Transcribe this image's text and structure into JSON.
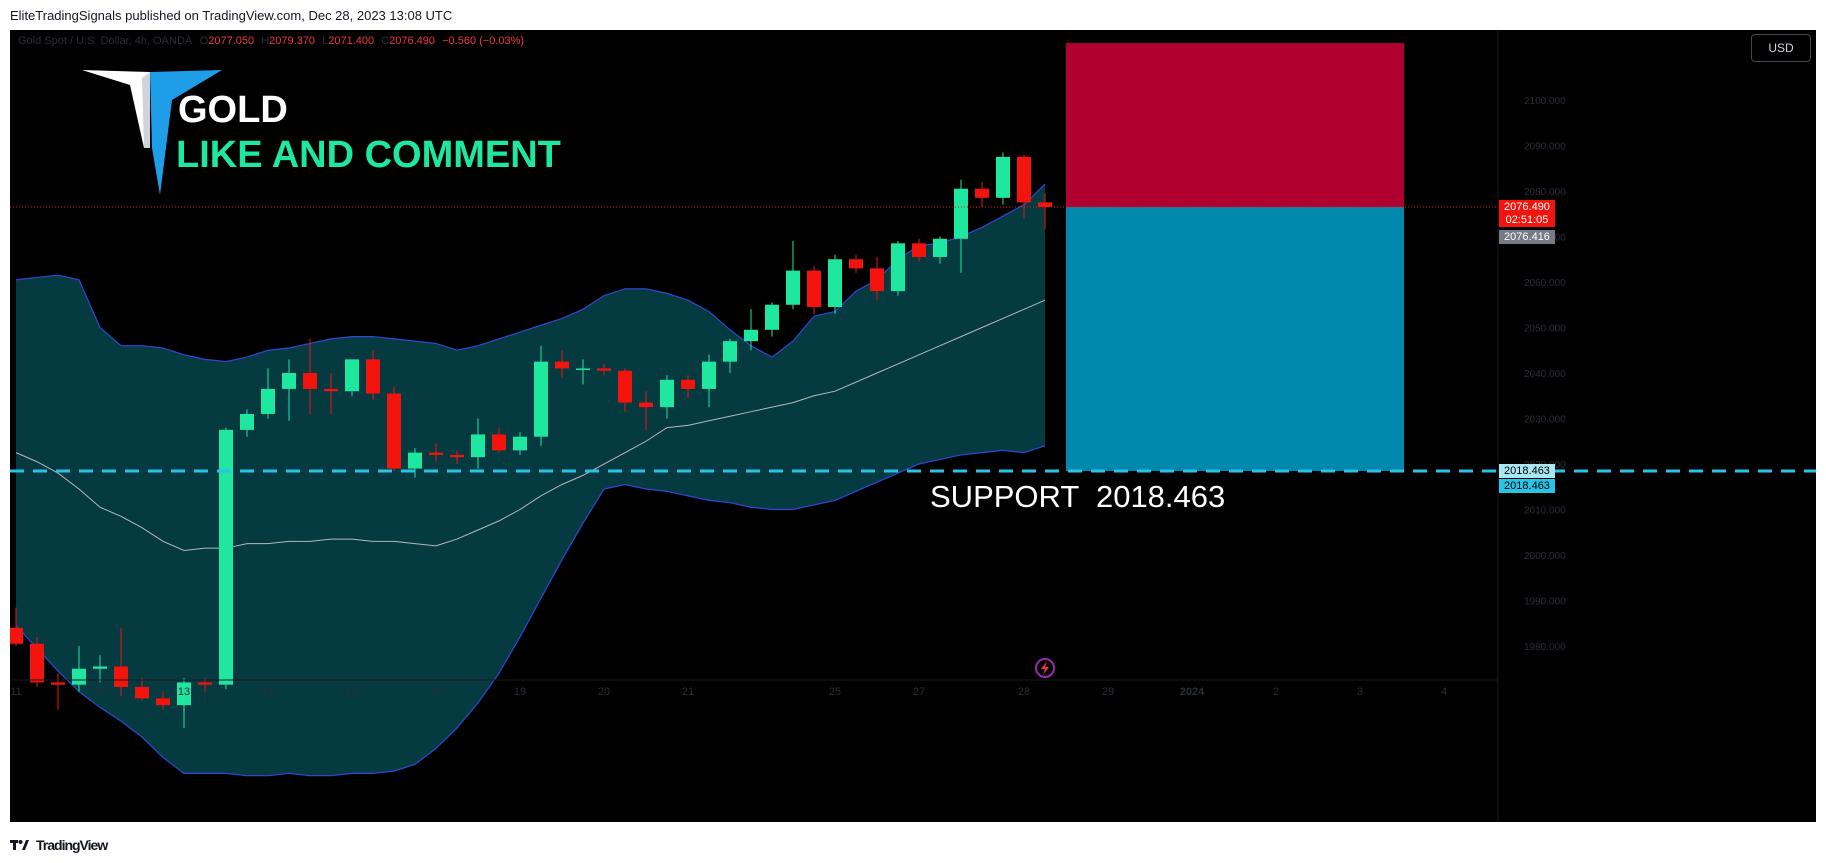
{
  "header": {
    "publisher_line": "EliteTradingSignals published on TradingView.com, Dec 28, 2023 13:08 UTC"
  },
  "footer": {
    "brand_logo_icon": "tradingview-logo-icon",
    "brand": "TradingView"
  },
  "chart_toolbar": {
    "currency_button": "USD"
  },
  "legend": {
    "symbol": "Gold Spot / U.S. Dollar, 4h, OANDA",
    "open_label": "O",
    "open": "2077.050",
    "high_label": "H",
    "high": "2079.370",
    "low_label": "L",
    "low": "2071.400",
    "close_label": "C",
    "close": "2076.490",
    "change": "−0.560 (−0.03%)"
  },
  "overlay": {
    "logo_icon": "elite-trading-signals-logo-icon",
    "title": "GOLD",
    "subtitle": "LIKE AND COMMENT",
    "support_text": "SUPPORT  2018.463"
  },
  "price_labels": {
    "last_price": "2076.490",
    "countdown": "02:51:05",
    "bid": "2076.416",
    "support_1": "2018.463",
    "support_2": "2018.463"
  },
  "colors": {
    "bull": "#1ee8a0",
    "bear": "#f2140d",
    "band_fill": "#063a41",
    "band_line": "#2f48d4",
    "basis_line": "#b3b8bd",
    "stop_zone": "#b00030",
    "target_zone": "#0089ad",
    "support_line": "#27c4e6"
  },
  "chart_data": {
    "type": "candlestick",
    "timeframe": "4h",
    "y_axis": {
      "min": 1970,
      "max": 2115,
      "ticks": [
        1980,
        1990,
        2000,
        2010,
        2020,
        2030,
        2040,
        2050,
        2060,
        2070,
        2080,
        2090,
        2100
      ]
    },
    "x_ticks": [
      "11",
      "12",
      "13",
      "14",
      "15",
      "18",
      "19",
      "20",
      "21",
      "25",
      "27",
      "28",
      "29",
      "2024",
      "2",
      "3",
      "4"
    ],
    "candles": [
      {
        "o": 1984.0,
        "h": 1988.5,
        "l": 1980.0,
        "c": 1980.5
      },
      {
        "o": 1980.5,
        "h": 1982.0,
        "l": 1971.0,
        "c": 1972.0
      },
      {
        "o": 1972.0,
        "h": 1974.0,
        "l": 1966.0,
        "c": 1971.5
      },
      {
        "o": 1971.5,
        "h": 1980.0,
        "l": 1970.0,
        "c": 1975.0
      },
      {
        "o": 1975.0,
        "h": 1978.0,
        "l": 1972.0,
        "c": 1975.5
      },
      {
        "o": 1975.5,
        "h": 1984.0,
        "l": 1969.0,
        "c": 1971.0
      },
      {
        "o": 1971.0,
        "h": 1973.0,
        "l": 1968.0,
        "c": 1968.5
      },
      {
        "o": 1968.5,
        "h": 1970.0,
        "l": 1966.0,
        "c": 1967.0
      },
      {
        "o": 1967.0,
        "h": 1973.0,
        "l": 1962.0,
        "c": 1972.0
      },
      {
        "o": 1972.0,
        "h": 1973.0,
        "l": 1970.0,
        "c": 1971.5
      },
      {
        "o": 1971.5,
        "h": 2028.0,
        "l": 1970.5,
        "c": 2027.5
      },
      {
        "o": 2027.5,
        "h": 2032.0,
        "l": 2026.0,
        "c": 2031.0
      },
      {
        "o": 2031.0,
        "h": 2041.0,
        "l": 2030.0,
        "c": 2036.5
      },
      {
        "o": 2036.5,
        "h": 2043.0,
        "l": 2029.5,
        "c": 2040.0
      },
      {
        "o": 2040.0,
        "h": 2047.5,
        "l": 2031.0,
        "c": 2036.5
      },
      {
        "o": 2036.5,
        "h": 2040.0,
        "l": 2031.0,
        "c": 2036.0
      },
      {
        "o": 2036.0,
        "h": 2043.0,
        "l": 2035.0,
        "c": 2043.0
      },
      {
        "o": 2043.0,
        "h": 2045.0,
        "l": 2034.0,
        "c": 2035.5
      },
      {
        "o": 2035.5,
        "h": 2037.0,
        "l": 2018.5,
        "c": 2019.0
      },
      {
        "o": 2019.0,
        "h": 2023.5,
        "l": 2017.0,
        "c": 2022.5
      },
      {
        "o": 2022.5,
        "h": 2024.5,
        "l": 2020.5,
        "c": 2022.0
      },
      {
        "o": 2022.0,
        "h": 2023.0,
        "l": 2020.0,
        "c": 2021.5
      },
      {
        "o": 2021.5,
        "h": 2030.0,
        "l": 2019.0,
        "c": 2026.5
      },
      {
        "o": 2026.5,
        "h": 2028.0,
        "l": 2022.5,
        "c": 2023.0
      },
      {
        "o": 2023.0,
        "h": 2027.0,
        "l": 2022.0,
        "c": 2026.0
      },
      {
        "o": 2026.0,
        "h": 2046.0,
        "l": 2024.0,
        "c": 2042.5
      },
      {
        "o": 2042.5,
        "h": 2045.0,
        "l": 2039.0,
        "c": 2041.0
      },
      {
        "o": 2041.0,
        "h": 2043.0,
        "l": 2037.5,
        "c": 2041.0
      },
      {
        "o": 2041.0,
        "h": 2042.0,
        "l": 2039.5,
        "c": 2040.5
      },
      {
        "o": 2040.5,
        "h": 2041.0,
        "l": 2031.5,
        "c": 2033.5
      },
      {
        "o": 2033.5,
        "h": 2036.0,
        "l": 2027.5,
        "c": 2032.5
      },
      {
        "o": 2032.5,
        "h": 2039.5,
        "l": 2030.0,
        "c": 2038.5
      },
      {
        "o": 2038.5,
        "h": 2039.5,
        "l": 2034.5,
        "c": 2036.5
      },
      {
        "o": 2036.5,
        "h": 2044.0,
        "l": 2032.5,
        "c": 2042.5
      },
      {
        "o": 2042.5,
        "h": 2047.5,
        "l": 2040.0,
        "c": 2047.0
      },
      {
        "o": 2047.0,
        "h": 2054.0,
        "l": 2045.0,
        "c": 2049.5
      },
      {
        "o": 2049.5,
        "h": 2055.5,
        "l": 2048.0,
        "c": 2055.0
      },
      {
        "o": 2055.0,
        "h": 2069.0,
        "l": 2054.0,
        "c": 2062.5
      },
      {
        "o": 2062.5,
        "h": 2063.5,
        "l": 2053.0,
        "c": 2054.5
      },
      {
        "o": 2054.5,
        "h": 2066.0,
        "l": 2053.0,
        "c": 2065.0
      },
      {
        "o": 2065.0,
        "h": 2066.0,
        "l": 2062.0,
        "c": 2063.0
      },
      {
        "o": 2063.0,
        "h": 2065.5,
        "l": 2056.0,
        "c": 2058.0
      },
      {
        "o": 2058.0,
        "h": 2069.0,
        "l": 2057.0,
        "c": 2068.5
      },
      {
        "o": 2068.5,
        "h": 2069.5,
        "l": 2064.5,
        "c": 2065.5
      },
      {
        "o": 2065.5,
        "h": 2070.0,
        "l": 2064.0,
        "c": 2069.5
      },
      {
        "o": 2069.5,
        "h": 2082.5,
        "l": 2062.0,
        "c": 2080.5
      },
      {
        "o": 2080.5,
        "h": 2082.0,
        "l": 2076.5,
        "c": 2078.5
      },
      {
        "o": 2078.5,
        "h": 2088.5,
        "l": 2077.0,
        "c": 2087.5
      },
      {
        "o": 2087.5,
        "h": 2088.0,
        "l": 2074.0,
        "c": 2077.5
      },
      {
        "o": 2077.5,
        "h": 2079.5,
        "l": 2071.5,
        "c": 2076.5
      }
    ],
    "bollinger_upper": [
      2060.5,
      2061.0,
      2061.5,
      2060.5,
      2050.0,
      2046.0,
      2046.0,
      2045.5,
      2044.0,
      2043.0,
      2042.5,
      2043.5,
      2045.0,
      2045.5,
      2046.5,
      2047.5,
      2048.0,
      2048.0,
      2047.5,
      2047.0,
      2046.5,
      2045.0,
      2046.0,
      2047.5,
      2049.0,
      2050.5,
      2052.0,
      2054.0,
      2057.0,
      2058.5,
      2058.5,
      2057.5,
      2056.0,
      2053.5,
      2049.5,
      2046.0,
      2043.5,
      2047.0,
      2052.5,
      2053.5,
      2058.0,
      2060.5,
      2065.0,
      2068.0,
      2068.5,
      2070.0,
      2072.0,
      2074.5,
      2077.0,
      2081.5
    ],
    "bollinger_basis": [
      2022.5,
      2020.5,
      2018.0,
      2014.5,
      2010.5,
      2008.5,
      2006.0,
      2003.0,
      2001.0,
      2001.5,
      2001.5,
      2002.5,
      2002.5,
      2003.0,
      2003.0,
      2003.5,
      2003.5,
      2003.0,
      2003.0,
      2002.5,
      2002.0,
      2003.5,
      2005.5,
      2007.5,
      2010.0,
      2013.0,
      2015.5,
      2017.5,
      2020.0,
      2022.5,
      2025.0,
      2028.0,
      2028.5,
      2029.5,
      2030.5,
      2031.5,
      2032.5,
      2033.5,
      2035.0,
      2036.0,
      2038.0,
      2040.0,
      2042.0,
      2044.0,
      2046.0,
      2048.0,
      2050.0,
      2052.0,
      2054.0,
      2056.0
    ],
    "bollinger_lower": [
      1984.5,
      1979.5,
      1974.5,
      1970.0,
      1966.5,
      1963.5,
      1960.0,
      1955.5,
      1952.0,
      1952.0,
      1952.0,
      1951.5,
      1951.5,
      1952.0,
      1951.5,
      1951.5,
      1952.0,
      1952.0,
      1952.5,
      1954.0,
      1957.5,
      1962.0,
      1967.5,
      1974.0,
      1982.0,
      1990.5,
      1999.0,
      2007.0,
      2014.5,
      2015.5,
      2014.5,
      2014.0,
      2013.0,
      2012.0,
      2011.5,
      2010.5,
      2010.0,
      2010.0,
      2011.0,
      2012.0,
      2014.0,
      2016.0,
      2018.0,
      2020.0,
      2021.0,
      2022.0,
      2022.5,
      2023.0,
      2022.5,
      2024.0
    ],
    "last_price": 2076.49,
    "support": 2018.463,
    "position_tool": {
      "entry": 2076.49,
      "stop": 2112.5,
      "target": 2018.463
    }
  }
}
